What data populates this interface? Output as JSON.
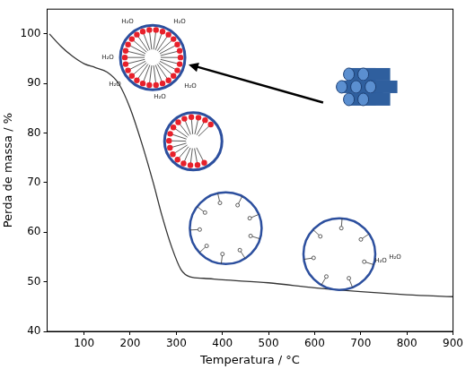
{
  "chart_data": {
    "type": "line",
    "x_label": "Temperatura / °C",
    "y_label": "Perda de massa / %",
    "x": [
      25,
      50,
      75,
      100,
      125,
      150,
      175,
      200,
      225,
      250,
      270,
      290,
      310,
      330,
      360,
      400,
      500,
      600,
      700,
      800,
      900
    ],
    "values": [
      100,
      97.5,
      95.5,
      94,
      93.2,
      92.3,
      90,
      85,
      78,
      70,
      63,
      57,
      52.5,
      51,
      50.7,
      50.4,
      49.8,
      48.8,
      48,
      47.4,
      47
    ],
    "color": "#333333",
    "xlim": [
      20,
      900
    ],
    "xticks": [
      100,
      200,
      300,
      400,
      500,
      600,
      700,
      800,
      900
    ],
    "ylim": [
      40,
      105
    ],
    "yticks": [
      40,
      50,
      60,
      70,
      80,
      90,
      100
    ],
    "grid": false,
    "annotations": [
      "H₂O"
    ]
  }
}
